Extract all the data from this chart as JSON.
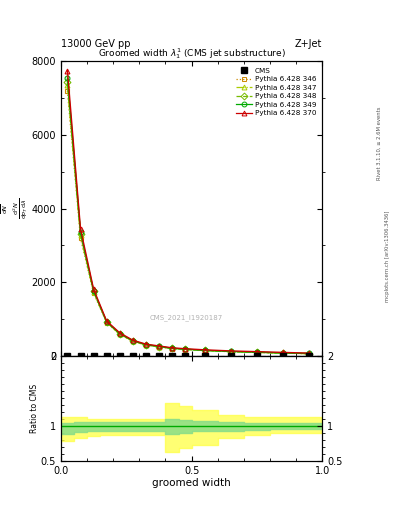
{
  "title_top": "13000 GeV pp",
  "title_right": "Z+Jet",
  "plot_title": "Groomed width $\\lambda\\_1^1$ (CMS jet substructure)",
  "watermark": "CMS_2021_I1920187",
  "right_label_top": "Rivet 3.1.10, ≥ 2.6M events",
  "right_label_bottom": "mcplots.cern.ch [arXiv:1306.3436]",
  "xlabel": "groomed width",
  "xlim": [
    0,
    1
  ],
  "ylim_main": [
    0,
    8000
  ],
  "ylim_ratio": [
    0.5,
    2.0
  ],
  "series": [
    {
      "label": "CMS",
      "color": "#000000",
      "marker": "s",
      "markersize": 4,
      "linestyle": "none",
      "x": [
        0.025,
        0.075,
        0.125,
        0.175,
        0.225,
        0.275,
        0.325,
        0.375,
        0.425,
        0.475,
        0.55,
        0.65,
        0.75,
        0.85,
        0.95
      ],
      "y": [
        0,
        0,
        0,
        0,
        0,
        0,
        0,
        0,
        0,
        0,
        0,
        0,
        0,
        0,
        0
      ],
      "filled": true
    },
    {
      "label": "Pythia 6.428 346",
      "color": "#cc8800",
      "marker": "s",
      "markersize": 3.5,
      "linestyle": "dotted",
      "fillstyle": "none",
      "x": [
        0.025,
        0.075,
        0.125,
        0.175,
        0.225,
        0.275,
        0.325,
        0.375,
        0.425,
        0.475,
        0.55,
        0.65,
        0.75,
        0.85,
        0.95
      ],
      "y": [
        7200,
        3200,
        1700,
        900,
        580,
        390,
        290,
        240,
        195,
        170,
        140,
        110,
        90,
        70,
        55
      ]
    },
    {
      "label": "Pythia 6.428 347",
      "color": "#aacc00",
      "marker": "^",
      "markersize": 3.5,
      "linestyle": "dashdot",
      "fillstyle": "none",
      "x": [
        0.025,
        0.075,
        0.125,
        0.175,
        0.225,
        0.275,
        0.325,
        0.375,
        0.425,
        0.475,
        0.55,
        0.65,
        0.75,
        0.85,
        0.95
      ],
      "y": [
        7350,
        3280,
        1740,
        910,
        590,
        398,
        295,
        245,
        198,
        173,
        142,
        112,
        92,
        72,
        57
      ]
    },
    {
      "label": "Pythia 6.428 348",
      "color": "#77bb00",
      "marker": "D",
      "markersize": 3.5,
      "linestyle": "dashed",
      "fillstyle": "none",
      "x": [
        0.025,
        0.075,
        0.125,
        0.175,
        0.225,
        0.275,
        0.325,
        0.375,
        0.425,
        0.475,
        0.55,
        0.65,
        0.75,
        0.85,
        0.95
      ],
      "y": [
        7450,
        3320,
        1755,
        916,
        596,
        403,
        298,
        248,
        200,
        175,
        143,
        113,
        93,
        73,
        58
      ]
    },
    {
      "label": "Pythia 6.428 349",
      "color": "#00aa00",
      "marker": "o",
      "markersize": 3.5,
      "linestyle": "solid",
      "fillstyle": "none",
      "x": [
        0.025,
        0.075,
        0.125,
        0.175,
        0.225,
        0.275,
        0.325,
        0.375,
        0.425,
        0.475,
        0.55,
        0.65,
        0.75,
        0.85,
        0.95
      ],
      "y": [
        7550,
        3360,
        1770,
        922,
        602,
        408,
        302,
        252,
        202,
        178,
        145,
        115,
        95,
        75,
        60
      ]
    },
    {
      "label": "Pythia 6.428 370",
      "color": "#cc0000",
      "marker": "^",
      "markersize": 3.5,
      "linestyle": "solid",
      "fillstyle": "none",
      "x": [
        0.025,
        0.075,
        0.125,
        0.175,
        0.225,
        0.275,
        0.325,
        0.375,
        0.425,
        0.475,
        0.55,
        0.65,
        0.75,
        0.85,
        0.95
      ],
      "y": [
        7750,
        3450,
        1810,
        942,
        622,
        422,
        315,
        265,
        215,
        190,
        160,
        130,
        110,
        90,
        70
      ]
    }
  ],
  "ratio_bands": [
    {
      "color": "#ffff44",
      "alpha": 0.75,
      "x": [
        0.0,
        0.05,
        0.1,
        0.15,
        0.2,
        0.25,
        0.3,
        0.35,
        0.4,
        0.45,
        0.5,
        0.6,
        0.7,
        0.8,
        0.9,
        1.0
      ],
      "y_low": [
        0.78,
        0.82,
        0.85,
        0.87,
        0.87,
        0.87,
        0.87,
        0.87,
        0.62,
        0.68,
        0.72,
        0.82,
        0.87,
        0.9,
        0.9,
        0.9
      ],
      "y_high": [
        1.12,
        1.12,
        1.1,
        1.1,
        1.1,
        1.1,
        1.1,
        1.1,
        1.32,
        1.28,
        1.22,
        1.15,
        1.12,
        1.12,
        1.12,
        1.12
      ]
    },
    {
      "color": "#88dd88",
      "alpha": 0.85,
      "x": [
        0.0,
        0.05,
        0.1,
        0.15,
        0.2,
        0.25,
        0.3,
        0.35,
        0.4,
        0.45,
        0.5,
        0.6,
        0.7,
        0.8,
        0.9,
        1.0
      ],
      "y_low": [
        0.88,
        0.91,
        0.92,
        0.93,
        0.93,
        0.93,
        0.93,
        0.93,
        0.88,
        0.9,
        0.92,
        0.93,
        0.94,
        0.95,
        0.95,
        0.95
      ],
      "y_high": [
        1.04,
        1.06,
        1.06,
        1.06,
        1.06,
        1.06,
        1.06,
        1.06,
        1.1,
        1.08,
        1.07,
        1.05,
        1.04,
        1.04,
        1.04,
        1.04
      ]
    }
  ]
}
